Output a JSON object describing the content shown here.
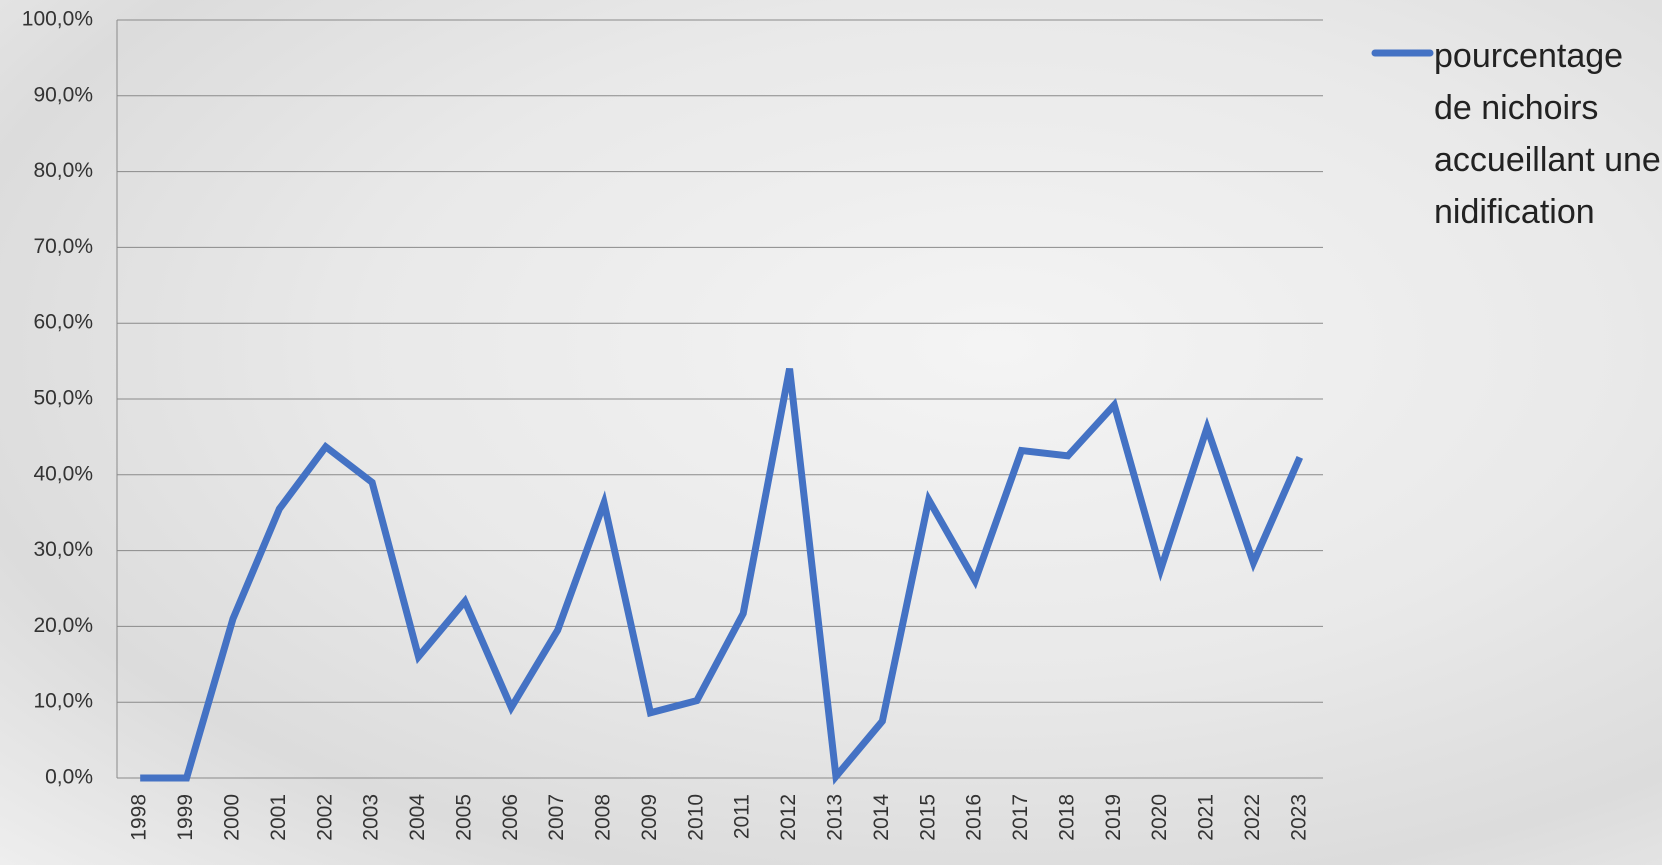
{
  "chart_data": {
    "type": "line",
    "categories": [
      "1998",
      "1999",
      "2000",
      "2001",
      "2002",
      "2003",
      "2004",
      "2005",
      "2006",
      "2007",
      "2008",
      "2009",
      "2010",
      "2011",
      "2012",
      "2013",
      "2014",
      "2015",
      "2016",
      "2017",
      "2018",
      "2019",
      "2020",
      "2021",
      "2022",
      "2023"
    ],
    "series": [
      {
        "name": "pourcentage de nichoirs accueillant une nidification",
        "color": "#4472c4",
        "values": [
          0,
          0,
          21,
          35.5,
          43.7,
          39,
          16,
          23.3,
          9.3,
          19.5,
          36.3,
          8.6,
          10.2,
          21.7,
          54,
          0.2,
          7.5,
          36.7,
          26,
          43.2,
          42.5,
          49.2,
          27.5,
          46.2,
          28.4,
          42.3
        ]
      }
    ],
    "ylim": [
      0,
      100
    ],
    "yticks": [
      {
        "value": 0,
        "label": "0,0%"
      },
      {
        "value": 10,
        "label": "10,0%"
      },
      {
        "value": 20,
        "label": "20,0%"
      },
      {
        "value": 30,
        "label": "30,0%"
      },
      {
        "value": 40,
        "label": "40,0%"
      },
      {
        "value": 50,
        "label": "50,0%"
      },
      {
        "value": 60,
        "label": "60,0%"
      },
      {
        "value": 70,
        "label": "70,0%"
      },
      {
        "value": 80,
        "label": "80,0%"
      },
      {
        "value": 90,
        "label": "90,0%"
      },
      {
        "value": 100,
        "label": "100,0%"
      }
    ],
    "grid": true
  }
}
